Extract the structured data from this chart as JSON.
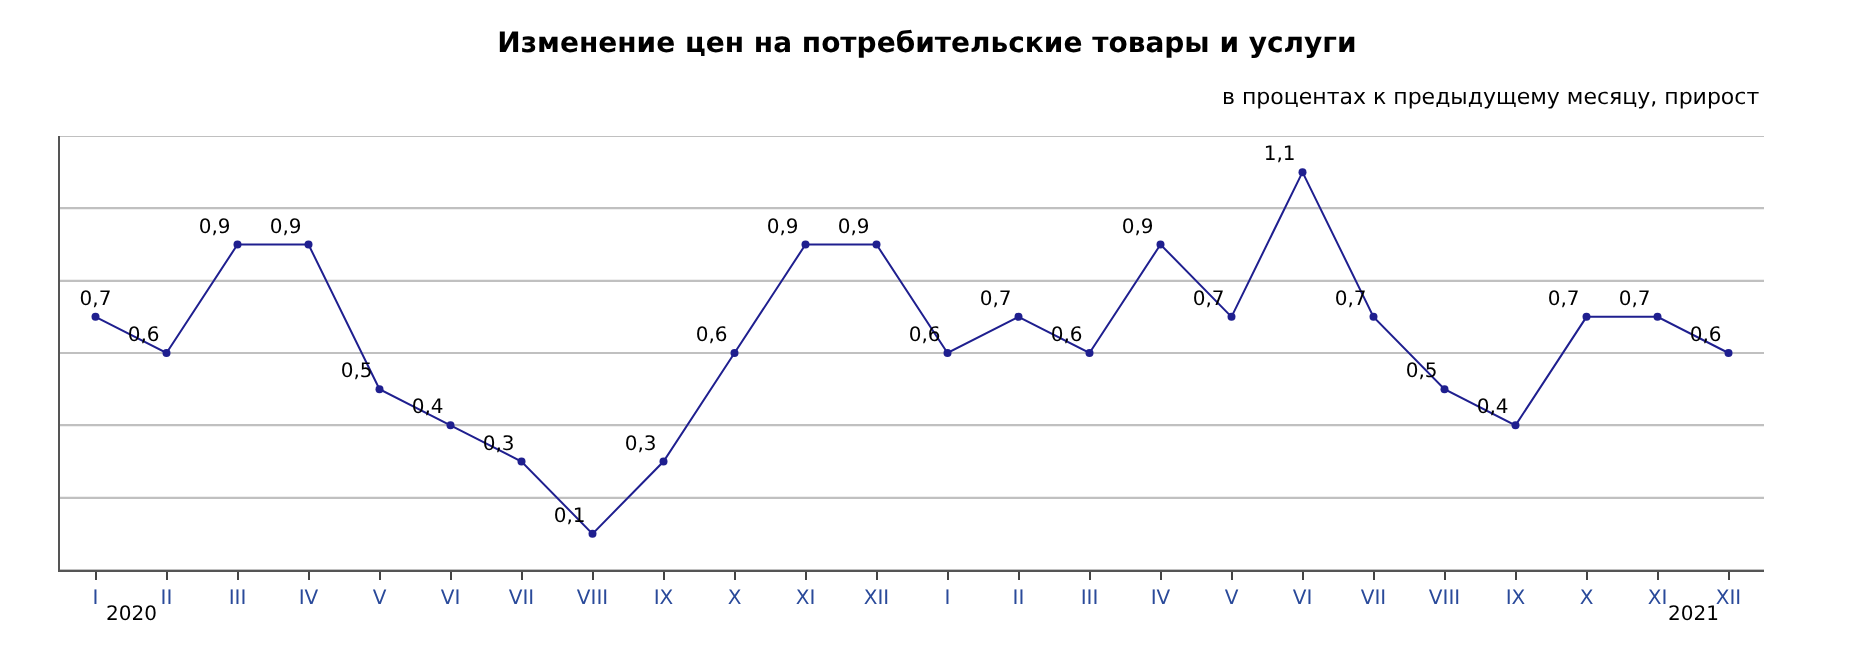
{
  "chart_data": {
    "type": "line",
    "title": "Изменение цен на потребительские товары и услуги",
    "subtitle": "в процентах к предыдущему месяцу, прирост",
    "categories": [
      "I",
      "II",
      "III",
      "IV",
      "V",
      "VI",
      "VII",
      "VIII",
      "IX",
      "X",
      "XI",
      "XII",
      "I",
      "II",
      "III",
      "IV",
      "V",
      "VI",
      "VII",
      "VIII",
      "IX",
      "X",
      "XI",
      "XII"
    ],
    "series": [
      {
        "color": "#1f1f8f",
        "values": [
          0.7,
          0.6,
          0.9,
          0.9,
          0.5,
          0.4,
          0.3,
          0.1,
          0.3,
          0.6,
          0.9,
          0.9,
          0.6,
          0.7,
          0.6,
          0.9,
          0.7,
          1.1,
          0.7,
          0.5,
          0.4,
          0.7,
          0.7,
          0.6
        ],
        "value_labels": [
          "0,7",
          "0,6",
          "0,9",
          "0,9",
          "0,5",
          "0,4",
          "0,3",
          "0,1",
          "0,3",
          "0,6",
          "0,9",
          "0,9",
          "0,6",
          "0,7",
          "0,6",
          "0,9",
          "0,7",
          "1,1",
          "0,7",
          "0,5",
          "0,4",
          "0,7",
          "0,7",
          "0,6"
        ]
      }
    ],
    "ylim": [
      0,
      1.2
    ],
    "yticks": [
      {
        "value": 0,
        "label": null
      },
      {
        "value": 0.2,
        "label": null
      },
      {
        "value": 0.4,
        "label": null
      },
      {
        "value": 0.6,
        "label": null
      },
      {
        "value": 0.8,
        "label": null
      },
      {
        "value": 1.0,
        "label": null
      },
      {
        "value": 1.2,
        "label": null
      }
    ],
    "tick_labels": "x",
    "grid": "y",
    "marker": "circle",
    "line_style": "solid",
    "annotations": [
      "2020",
      "2021"
    ]
  }
}
